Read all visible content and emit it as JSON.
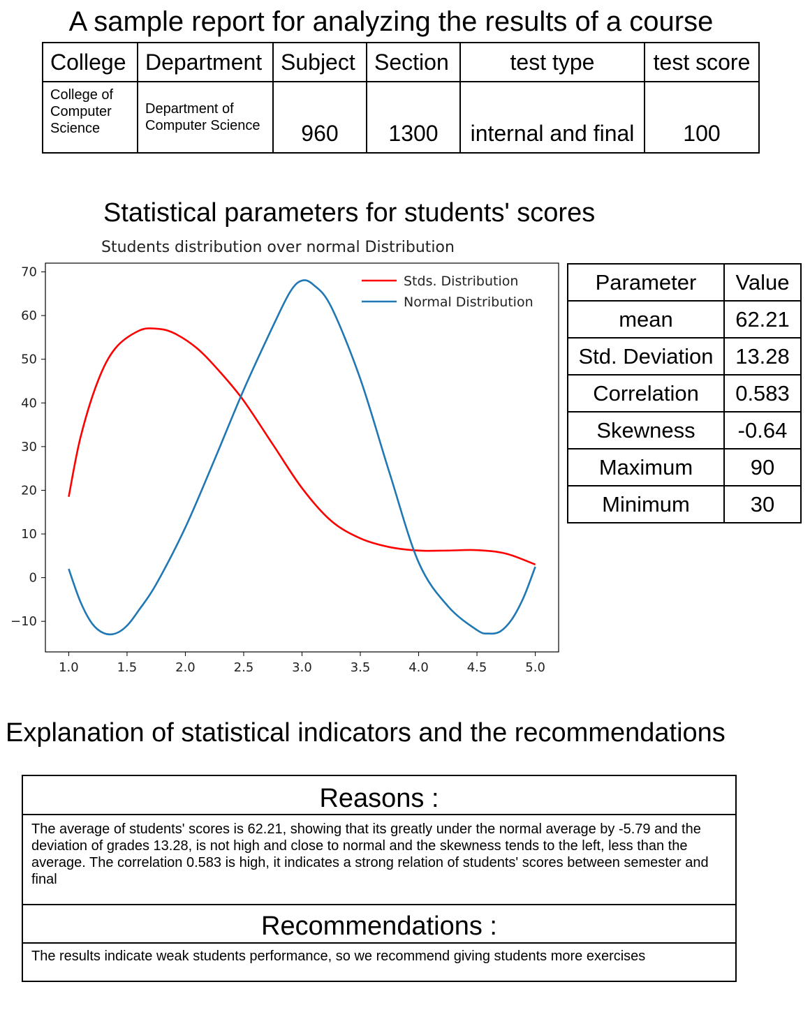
{
  "report_title": "A sample report for analyzing the results of a course",
  "course_table": {
    "headers": [
      "College",
      "Department",
      "Subject",
      "Section",
      "test type",
      "test score"
    ],
    "values": [
      "College of Computer Science",
      "Department of Computer Science",
      "960",
      "1300",
      "internal and final",
      "100"
    ]
  },
  "stats_title": "Statistical parameters for students' scores",
  "chart_data": {
    "type": "line",
    "title": "Students distribution over normal Distribution",
    "xlim": [
      0.8,
      5.2
    ],
    "ylim": [
      -17,
      72
    ],
    "x_ticks": [
      1.0,
      1.5,
      2.0,
      2.5,
      3.0,
      3.5,
      4.0,
      4.5,
      5.0
    ],
    "x_tick_labels": [
      "1.0",
      "1.5",
      "2.0",
      "2.5",
      "3.0",
      "3.5",
      "4.0",
      "4.5",
      "5.0"
    ],
    "y_ticks": [
      70,
      60,
      50,
      40,
      30,
      20,
      10,
      0,
      -10
    ],
    "y_tick_labels": [
      "70",
      "60",
      "50",
      "40",
      "30",
      "20",
      "10",
      "0",
      "−10"
    ],
    "legend_position": "top-right",
    "series": [
      {
        "name": "Stds. Distribution",
        "color": "#ff0000",
        "x": [
          1.0,
          1.1,
          1.25,
          1.4,
          1.6,
          1.75,
          1.9,
          2.1,
          2.3,
          2.5,
          2.75,
          3.0,
          3.25,
          3.5,
          3.75,
          4.0,
          4.25,
          4.5,
          4.75,
          5.0
        ],
        "y": [
          18.5,
          32,
          45,
          52.5,
          56.5,
          57,
          56,
          52.5,
          47,
          40.5,
          30.5,
          20.5,
          13,
          9,
          7,
          6.2,
          6.2,
          6.3,
          5.5,
          3.0
        ]
      },
      {
        "name": "Normal Distribution",
        "color": "#1f77b4",
        "x": [
          1.0,
          1.1,
          1.2,
          1.3,
          1.4,
          1.5,
          1.6,
          1.75,
          2.0,
          2.25,
          2.5,
          2.75,
          2.9,
          3.0,
          3.1,
          3.25,
          3.5,
          3.75,
          4.0,
          4.25,
          4.5,
          4.6,
          4.7,
          4.8,
          4.9,
          5.0
        ],
        "y": [
          2,
          -5.5,
          -10.5,
          -12.7,
          -12.8,
          -11,
          -7.5,
          -1.5,
          11.5,
          27,
          43,
          57.5,
          65.5,
          68,
          67,
          62,
          45.5,
          24,
          3.5,
          -6.5,
          -12,
          -12.8,
          -12.3,
          -9.5,
          -4.5,
          2.5
        ]
      }
    ]
  },
  "param_table": {
    "headers": [
      "Parameter",
      "Value"
    ],
    "rows": [
      [
        "mean",
        "62.21"
      ],
      [
        "Std. Deviation",
        "13.28"
      ],
      [
        "Correlation",
        "0.583"
      ],
      [
        "Skewness",
        "-0.64"
      ],
      [
        "Maximum",
        "90"
      ],
      [
        "Minimum",
        "30"
      ]
    ]
  },
  "explanation_title": "Explanation of statistical indicators and the recommendations",
  "reasons": {
    "heading": "Reasons :",
    "text": "The average of students' scores is 62.21, showing that its greatly under the normal average by -5.79 and the deviation of grades 13.28, is not high and close to normal and the skewness tends to the left, less than the average. The correlation 0.583 is high, it indicates a strong relation of students' scores between semester and final"
  },
  "recommendations": {
    "heading": "Recommendations :",
    "text": "The results indicate weak students performance, so we recommend giving students more exercises"
  }
}
